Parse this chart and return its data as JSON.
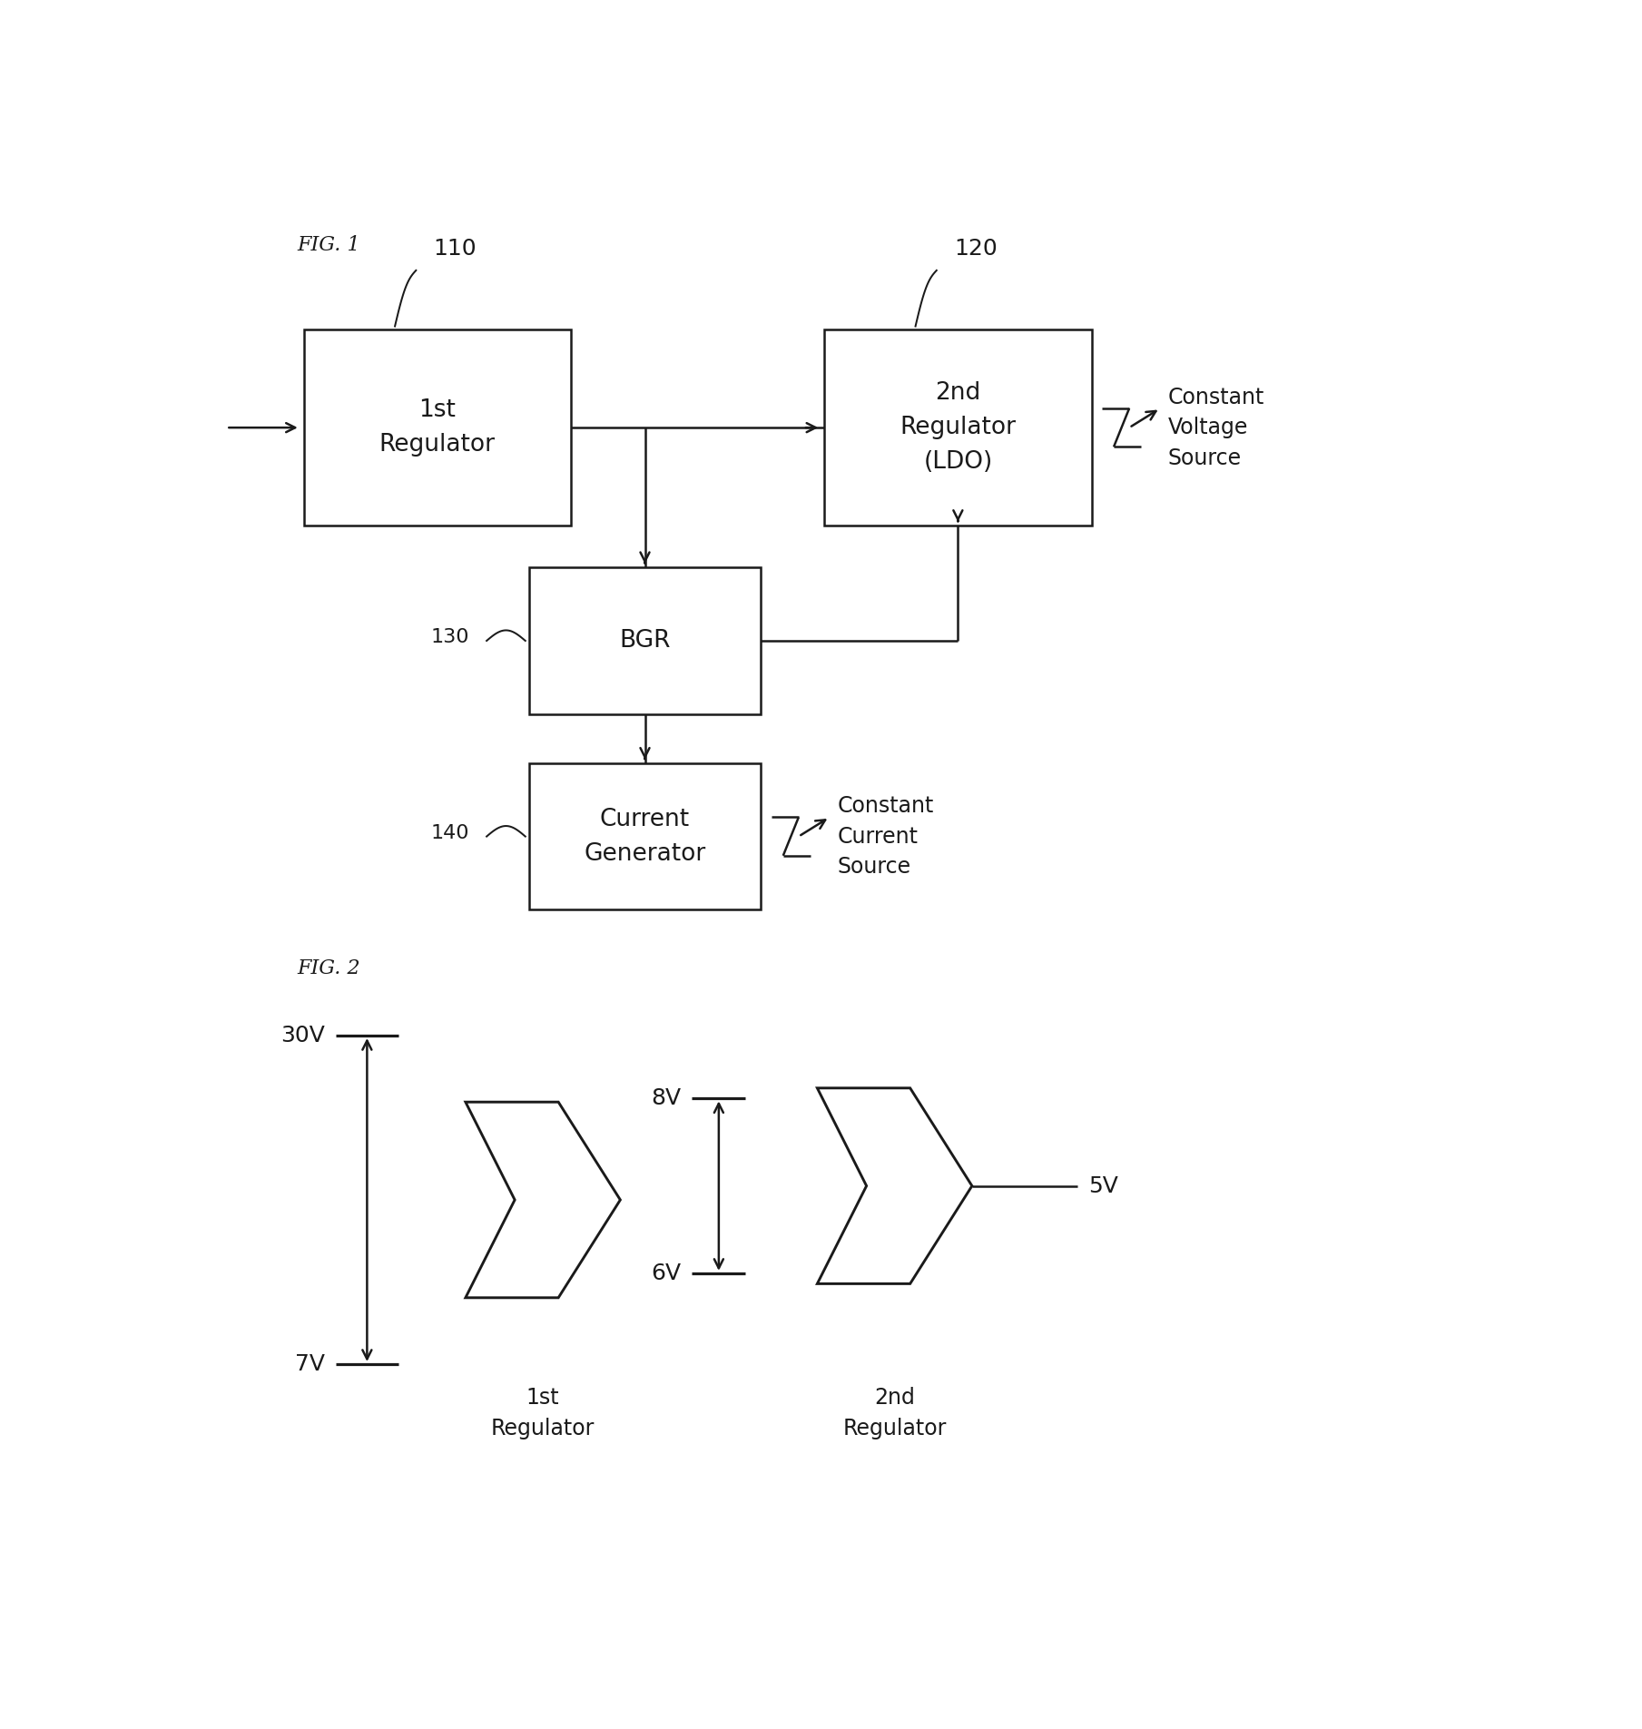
{
  "fig_width": 18.09,
  "fig_height": 19.05,
  "bg_color": "#ffffff",
  "line_color": "#1a1a1a",
  "text_color": "#1a1a1a",
  "fig1_label": "FIG. 1",
  "fig2_label": "FIG. 2",
  "box_110_label": "110",
  "box_120_label": "120",
  "box_130_label": "130",
  "box_140_label": "140",
  "box_110_text": "1st\nRegulator",
  "box_120_text": "2nd\nRegulator\n(LDO)",
  "box_130_text": "BGR",
  "box_140_text": "Current\nGenerator",
  "constant_voltage_text": "Constant\nVoltage\nSource",
  "constant_current_text": "Constant\nCurrent\nSource",
  "label_1st_reg": "1st\nRegulator",
  "label_2nd_reg": "2nd\nRegulator",
  "v30": "30V",
  "v7": "7V",
  "v8": "8V",
  "v6": "6V",
  "v5": "5V"
}
